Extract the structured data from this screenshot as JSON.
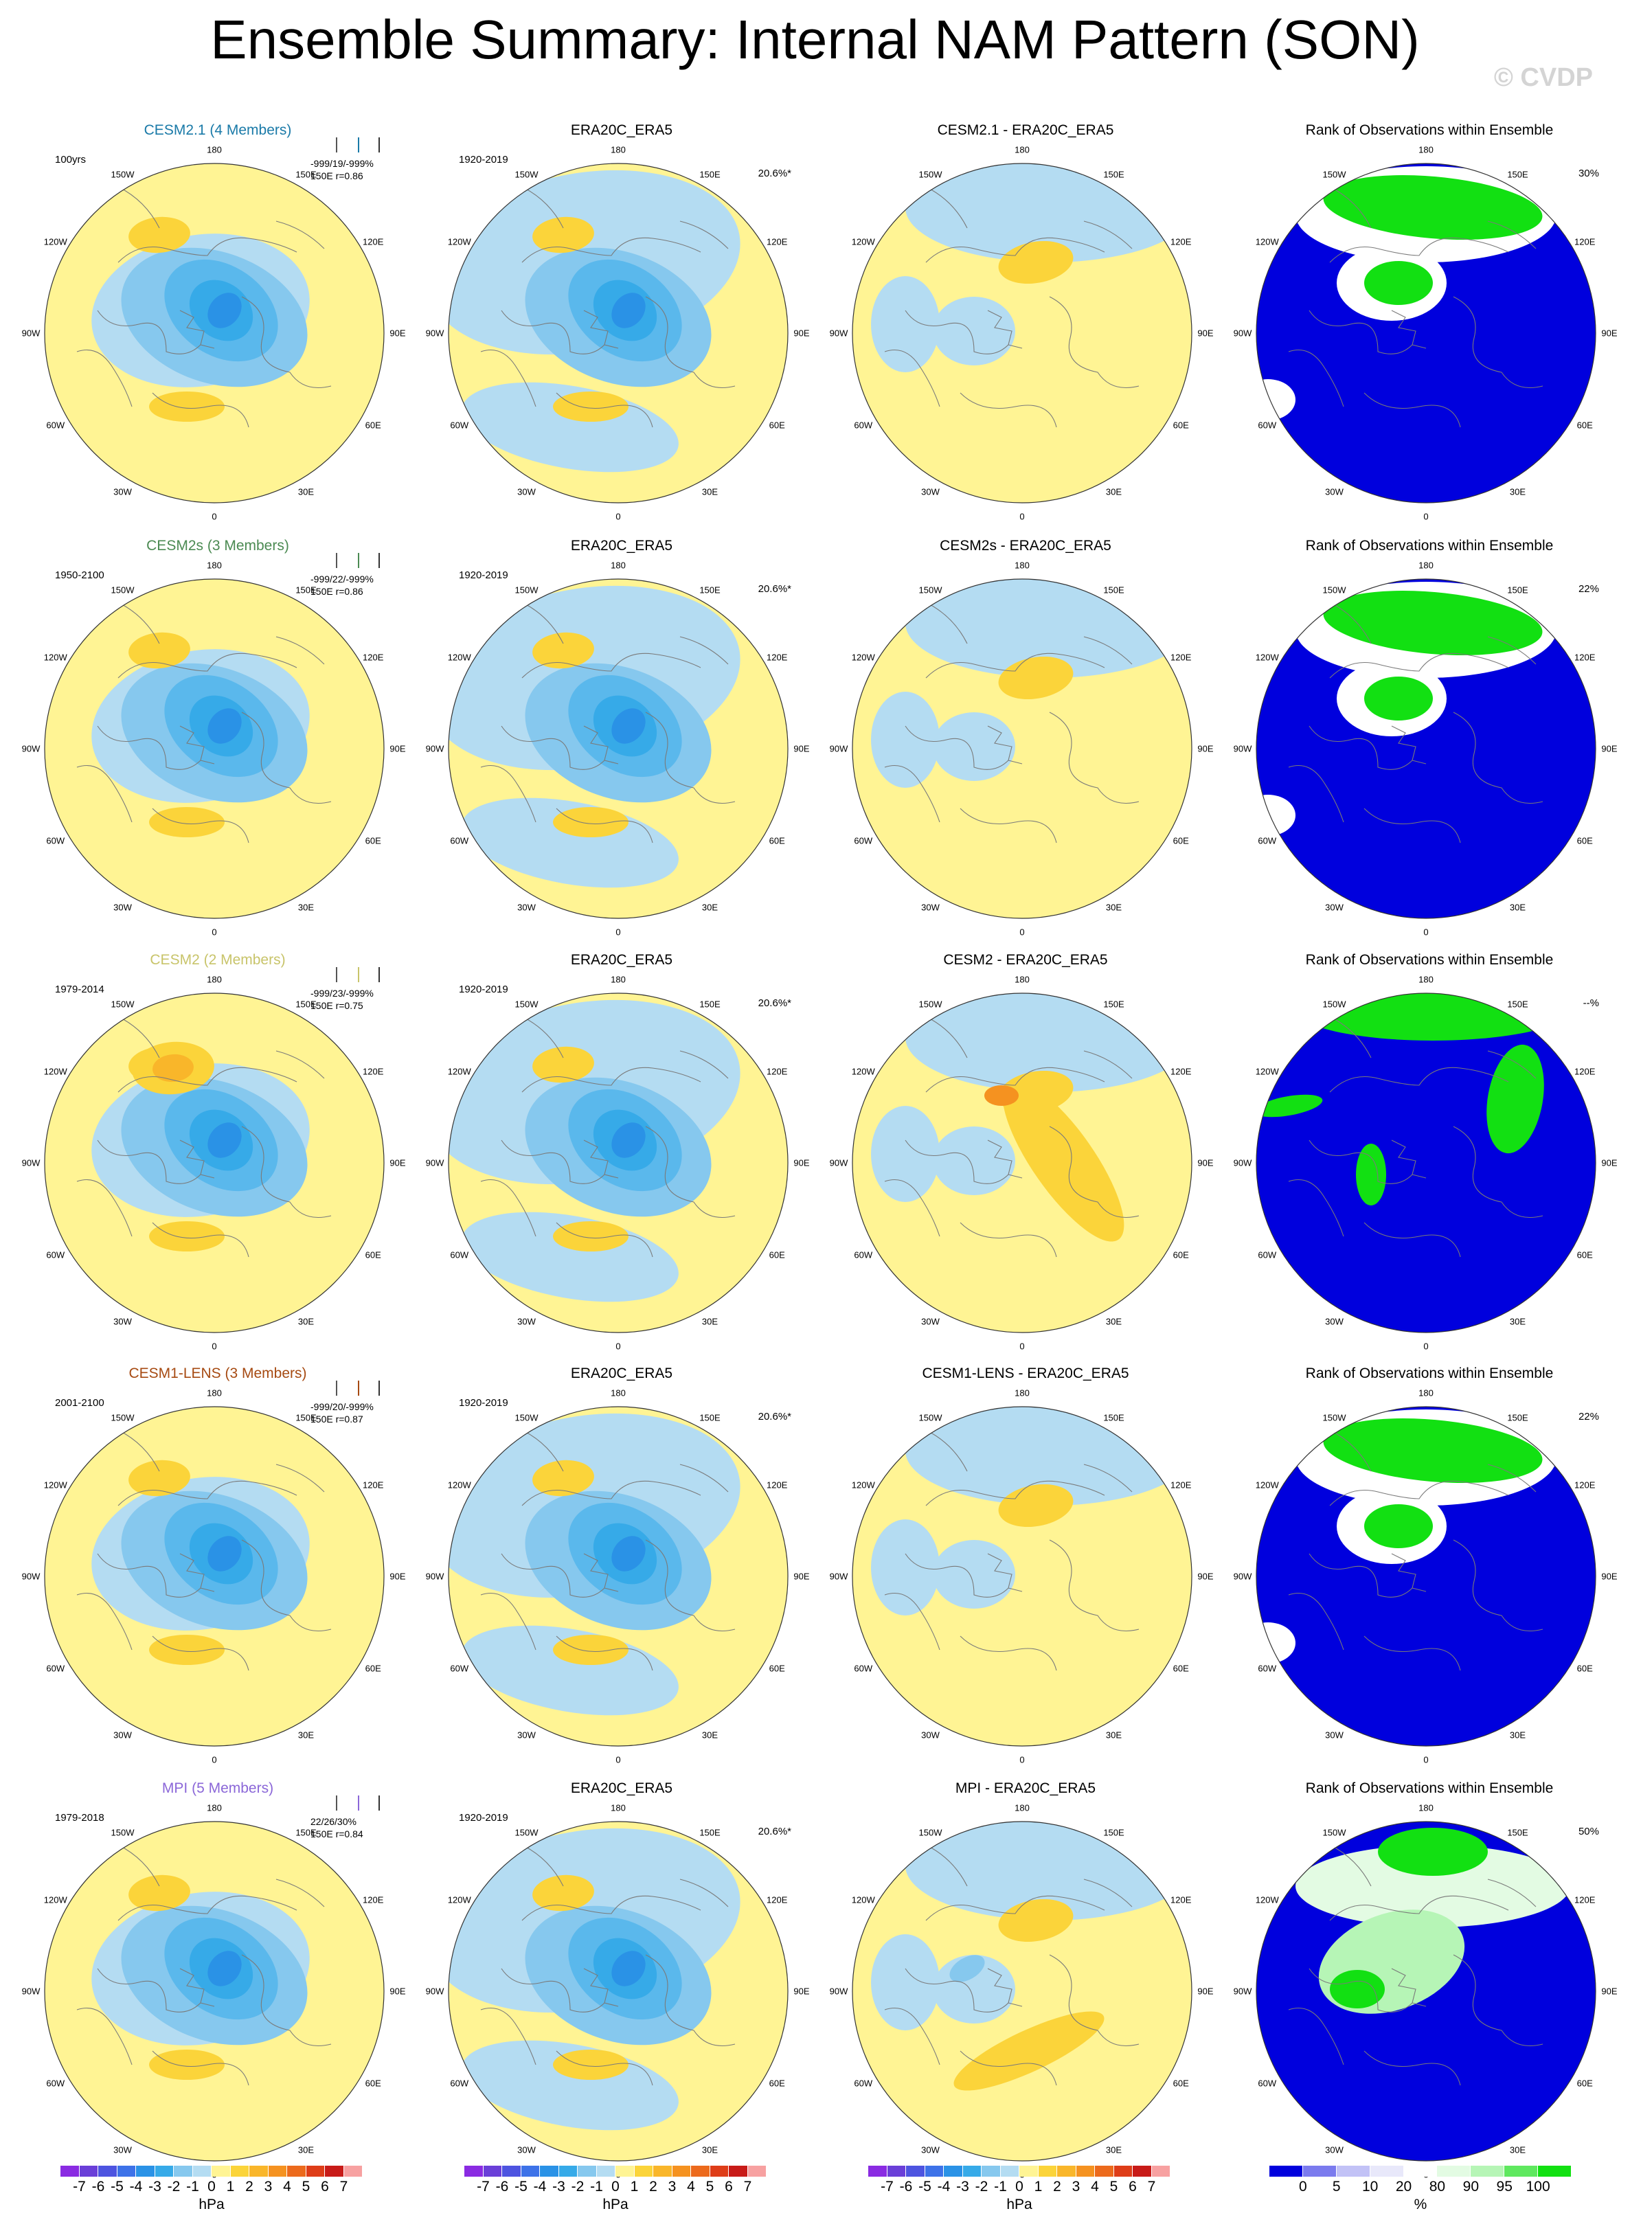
{
  "title": "Ensemble Summary: Internal NAM Pattern (SON)",
  "watermark": "© CVDP",
  "lon_labels": [
    "180",
    "150E",
    "120E",
    "90E",
    "60E",
    "30E",
    "0",
    "30W",
    "60W",
    "90W",
    "120W",
    "150W"
  ],
  "rows": [
    {
      "model": {
        "title": "CESM2.1 (4 Members)",
        "period": "100yrs",
        "stat1": "-999/19/-999%",
        "stat2": "150E r=0.86",
        "color": "#1a7aa8"
      },
      "obs": {
        "title": "ERA20C_ERA5",
        "period": "1920-2019",
        "pct": "20.6%*"
      },
      "diff": {
        "title": "CESM2.1 - ERA20C_ERA5"
      },
      "rank": {
        "title": "Rank of Observations within Ensemble",
        "pct": "30%"
      }
    },
    {
      "model": {
        "title": "CESM2s (3 Members)",
        "period": "1950-2100",
        "stat1": "-999/22/-999%",
        "stat2": "150E r=0.86",
        "color": "#4b8a52"
      },
      "obs": {
        "title": "ERA20C_ERA5",
        "period": "1920-2019",
        "pct": "20.6%*"
      },
      "diff": {
        "title": "CESM2s - ERA20C_ERA5"
      },
      "rank": {
        "title": "Rank of Observations within Ensemble",
        "pct": "22%"
      }
    },
    {
      "model": {
        "title": "CESM2 (2 Members)",
        "period": "1979-2014",
        "stat1": "-999/23/-999%",
        "stat2": "150E r=0.75",
        "color": "#c8c46a"
      },
      "obs": {
        "title": "ERA20C_ERA5",
        "period": "1920-2019",
        "pct": "20.6%*"
      },
      "diff": {
        "title": "CESM2 - ERA20C_ERA5"
      },
      "rank": {
        "title": "Rank of Observations within Ensemble",
        "pct": "--%"
      }
    },
    {
      "model": {
        "title": "CESM1-LENS (3 Members)",
        "period": "2001-2100",
        "stat1": "-999/20/-999%",
        "stat2": "150E r=0.87",
        "color": "#a64a12"
      },
      "obs": {
        "title": "ERA20C_ERA5",
        "period": "1920-2019",
        "pct": "20.6%*"
      },
      "diff": {
        "title": "CESM1-LENS - ERA20C_ERA5"
      },
      "rank": {
        "title": "Rank of Observations within Ensemble",
        "pct": "22%"
      }
    },
    {
      "model": {
        "title": "MPI (5 Members)",
        "period": "1979-2018",
        "stat1": "22/26/30%",
        "stat2": "150E r=0.84",
        "color": "#8b67d8"
      },
      "obs": {
        "title": "ERA20C_ERA5",
        "period": "1920-2019",
        "pct": "20.6%*"
      },
      "diff": {
        "title": "MPI - ERA20C_ERA5"
      },
      "rank": {
        "title": "Rank of Observations within Ensemble",
        "pct": "50%"
      }
    }
  ],
  "chart_data": {
    "type": "heatmap",
    "projection": "polar stereographic, Northern Hemisphere",
    "variable": "sea level pressure NAM pattern (SON)",
    "colorbar_hpa": {
      "labels": [
        "-7",
        "-6",
        "-5",
        "-4",
        "-3",
        "-2",
        "-1",
        "0",
        "1",
        "2",
        "3",
        "4",
        "5",
        "6",
        "7"
      ],
      "unit": "hPa",
      "colors": [
        "#8a2be2",
        "#6a3fd8",
        "#4d54e0",
        "#3d72e8",
        "#2a92e6",
        "#36aae8",
        "#86c8ee",
        "#b4dcf2",
        "#fff494",
        "#fbd43a",
        "#f9b62a",
        "#f59220",
        "#ec6a1c",
        "#de3d18",
        "#c81b18",
        "#f7a1a1"
      ]
    },
    "colorbar_rank": {
      "labels": [
        "0",
        "5",
        "10",
        "20",
        "80",
        "90",
        "95",
        "100"
      ],
      "unit": "%",
      "colors": [
        "#0000dd",
        "#7b7bee",
        "#c2c2f6",
        "#e8e8fa",
        "#ffffff",
        "#e3fbe3",
        "#b6f5b6",
        "#5fe85f",
        "#12e012"
      ]
    }
  }
}
